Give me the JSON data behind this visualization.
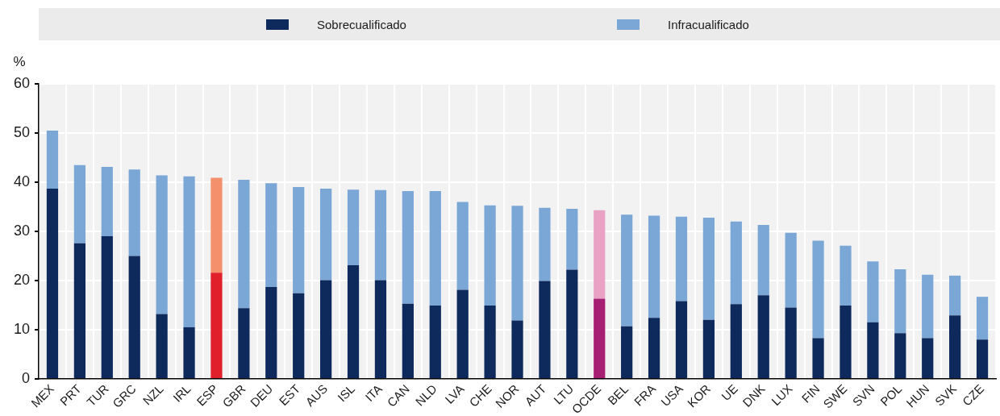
{
  "chart_data": {
    "type": "bar",
    "ylabel": "%",
    "stacked": true,
    "grid": true,
    "legend": "top",
    "categories": [
      "MEX",
      "PRT",
      "TUR",
      "GRC",
      "NZL",
      "IRL",
      "ESP",
      "GBR",
      "DEU",
      "EST",
      "AUS",
      "ISL",
      "ITA",
      "CAN",
      "NLD",
      "LVA",
      "CHE",
      "NOR",
      "AUT",
      "LTU",
      "OCDE",
      "BEL",
      "FRA",
      "USA",
      "KOR",
      "UE",
      "DNK",
      "LUX",
      "FIN",
      "SWE",
      "SVN",
      "POL",
      "HUN",
      "SVK",
      "CZE"
    ],
    "ylim": [
      0,
      60
    ],
    "yticks": [
      0,
      10,
      20,
      30,
      40,
      50,
      60
    ],
    "series": [
      {
        "name": "Sobrecualificado",
        "color": "#0e2a5c",
        "colors": [
          "#0e2a5c",
          "#0e2a5c",
          "#0e2a5c",
          "#0e2a5c",
          "#0e2a5c",
          "#0e2a5c",
          "#e0202a",
          "#0e2a5c",
          "#0e2a5c",
          "#0e2a5c",
          "#0e2a5c",
          "#0e2a5c",
          "#0e2a5c",
          "#0e2a5c",
          "#0e2a5c",
          "#0e2a5c",
          "#0e2a5c",
          "#0e2a5c",
          "#0e2a5c",
          "#0e2a5c",
          "#a61f72",
          "#0e2a5c",
          "#0e2a5c",
          "#0e2a5c",
          "#0e2a5c",
          "#0e2a5c",
          "#0e2a5c",
          "#0e2a5c",
          "#0e2a5c",
          "#0e2a5c",
          "#0e2a5c",
          "#0e2a5c",
          "#0e2a5c",
          "#0e2a5c",
          "#0e2a5c"
        ],
        "values": [
          38.7,
          27.6,
          29.0,
          25.0,
          13.2,
          10.5,
          21.6,
          14.4,
          18.7,
          17.4,
          20.1,
          23.1,
          20.1,
          15.3,
          14.9,
          18.1,
          14.9,
          11.9,
          19.9,
          22.2,
          16.3,
          10.7,
          12.4,
          15.8,
          12.0,
          15.2,
          17.0,
          14.5,
          8.3,
          14.9,
          11.5,
          9.3,
          8.3,
          12.9,
          8.0
        ]
      },
      {
        "name": "Infracualificado",
        "color": "#7ba7d7",
        "colors": [
          "#7ba7d7",
          "#7ba7d7",
          "#7ba7d7",
          "#7ba7d7",
          "#7ba7d7",
          "#7ba7d7",
          "#f4906c",
          "#7ba7d7",
          "#7ba7d7",
          "#7ba7d7",
          "#7ba7d7",
          "#7ba7d7",
          "#7ba7d7",
          "#7ba7d7",
          "#7ba7d7",
          "#7ba7d7",
          "#7ba7d7",
          "#7ba7d7",
          "#7ba7d7",
          "#7ba7d7",
          "#e8a2c4",
          "#7ba7d7",
          "#7ba7d7",
          "#7ba7d7",
          "#7ba7d7",
          "#7ba7d7",
          "#7ba7d7",
          "#7ba7d7",
          "#7ba7d7",
          "#7ba7d7",
          "#7ba7d7",
          "#7ba7d7",
          "#7ba7d7",
          "#7ba7d7",
          "#7ba7d7"
        ],
        "values": [
          11.8,
          15.9,
          14.1,
          17.6,
          28.2,
          30.7,
          19.3,
          26.1,
          21.1,
          21.6,
          18.6,
          15.4,
          18.3,
          22.9,
          23.3,
          17.9,
          20.4,
          23.3,
          14.9,
          12.4,
          18.0,
          22.7,
          20.8,
          17.2,
          20.8,
          16.8,
          14.3,
          15.2,
          19.8,
          12.2,
          12.4,
          13.0,
          12.9,
          8.1,
          8.7
        ]
      }
    ]
  }
}
